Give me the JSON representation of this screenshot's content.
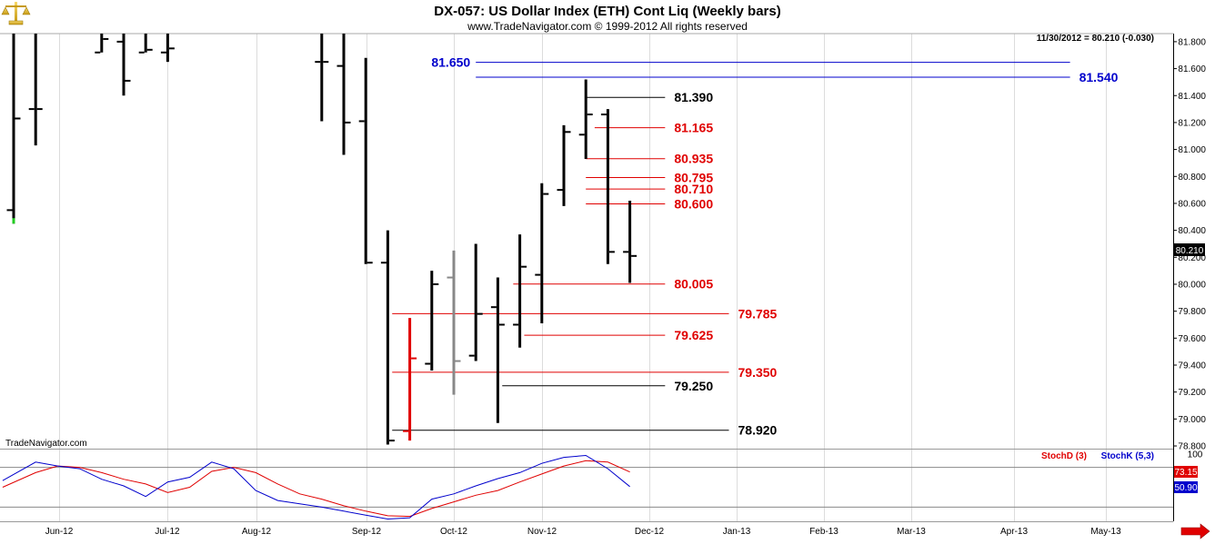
{
  "header": {
    "title": "DX-057:  US Dollar Index (ETH) Cont Liq  (Weekly bars)",
    "subtitle": "www.TradeNavigator.com © 1999-2012 All rights reserved",
    "last_quote": "11/30/2012 = 80.210 (-0.030)",
    "watermark": "TradeNavigator.com",
    "logo_icon": "scales-logo-icon",
    "scroll_icon": "arrow-right-icon"
  },
  "chart_data": [
    {
      "type": "ohlc",
      "title": "DX-057:  US Dollar Index (ETH) Cont Liq  (Weekly bars)",
      "ylim": [
        78.78,
        81.86
      ],
      "y_ticks": [
        78.8,
        79.0,
        79.2,
        79.4,
        79.6,
        79.8,
        80.0,
        80.2,
        80.4,
        80.6,
        80.8,
        81.0,
        81.2,
        81.4,
        81.6,
        81.8
      ],
      "y_tick_labels": [
        "78.800",
        "79.000",
        "79.200",
        "79.400",
        "79.600",
        "79.800",
        "80.000",
        "80.200",
        "80.400",
        "80.600",
        "80.800",
        "81.000",
        "81.200",
        "81.400",
        "81.600",
        "81.800"
      ],
      "months": [
        "Jun-12",
        "Jul-12",
        "Aug-12",
        "Sep-12",
        "Oct-12",
        "Nov-12",
        "Dec-12",
        "Jan-13",
        "Feb-13",
        "Mar-13",
        "Apr-13",
        "May-13"
      ],
      "last_price": 80.21,
      "last_price_label": "80.210",
      "bars": [
        {
          "week": 0,
          "open": 80.55,
          "high": 81.86,
          "low": 80.45,
          "close": 81.23,
          "color": "#000000"
        },
        {
          "week": 1,
          "open": 81.3,
          "high": 81.86,
          "low": 81.03,
          "close": 81.3,
          "color": "#000000"
        },
        {
          "week": 4,
          "open": 81.72,
          "high": 81.86,
          "low": 81.72,
          "close": 81.82,
          "color": "#000000"
        },
        {
          "week": 5,
          "open": 81.8,
          "high": 81.86,
          "low": 81.4,
          "close": 81.51,
          "color": "#000000"
        },
        {
          "week": 6,
          "open": 81.72,
          "high": 81.86,
          "low": 81.72,
          "close": 81.74,
          "color": "#000000"
        },
        {
          "week": 7,
          "open": 81.72,
          "high": 81.86,
          "low": 81.65,
          "close": 81.75,
          "color": "#000000"
        },
        {
          "week": 14,
          "open": 81.65,
          "high": 81.86,
          "low": 81.21,
          "close": 81.65,
          "color": "#000000"
        },
        {
          "week": 15,
          "open": 81.62,
          "high": 81.86,
          "low": 80.96,
          "close": 81.2,
          "color": "#000000"
        },
        {
          "week": 16,
          "open": 81.21,
          "high": 81.68,
          "low": 80.15,
          "close": 80.16,
          "color": "#000000"
        },
        {
          "week": 17,
          "open": 80.16,
          "high": 80.4,
          "low": 78.81,
          "close": 78.84,
          "color": "#000000"
        },
        {
          "week": 18,
          "open": 78.91,
          "high": 79.75,
          "low": 78.84,
          "close": 79.45,
          "color": "#e00000"
        },
        {
          "week": 19,
          "open": 79.41,
          "high": 80.1,
          "low": 79.36,
          "close": 80.0,
          "color": "#000000"
        },
        {
          "week": 20,
          "open": 80.05,
          "high": 80.25,
          "low": 79.18,
          "close": 79.43,
          "color": "#888888"
        },
        {
          "week": 21,
          "open": 79.47,
          "high": 80.3,
          "low": 79.43,
          "close": 79.78,
          "color": "#000000"
        },
        {
          "week": 22,
          "open": 79.83,
          "high": 80.05,
          "low": 78.97,
          "close": 79.7,
          "color": "#000000"
        },
        {
          "week": 23,
          "open": 79.7,
          "high": 80.37,
          "low": 79.53,
          "close": 80.13,
          "color": "#000000"
        },
        {
          "week": 24,
          "open": 80.07,
          "high": 80.75,
          "low": 79.71,
          "close": 80.67,
          "color": "#000000"
        },
        {
          "week": 25,
          "open": 80.7,
          "high": 81.18,
          "low": 80.58,
          "close": 81.13,
          "color": "#000000"
        },
        {
          "week": 26,
          "open": 81.11,
          "high": 81.52,
          "low": 80.93,
          "close": 81.26,
          "color": "#000000"
        },
        {
          "week": 27,
          "open": 81.26,
          "high": 81.3,
          "low": 80.15,
          "close": 80.24,
          "color": "#000000"
        },
        {
          "week": 28,
          "open": 80.24,
          "high": 80.62,
          "low": 80.01,
          "close": 80.21,
          "color": "#000000"
        }
      ],
      "levels": [
        {
          "label": "81.650",
          "value": 81.65,
          "color": "#0000cc",
          "from_week": 21.0,
          "to_week": 48.0,
          "label_side": "left"
        },
        {
          "label": "81.540",
          "value": 81.54,
          "color": "#0000cc",
          "from_week": 21.0,
          "to_week": 48.0,
          "label_side": "right"
        },
        {
          "label": "81.390",
          "value": 81.39,
          "color": "#000000",
          "from_week": 26.0,
          "to_week": 29.6,
          "label_side": "right"
        },
        {
          "label": "81.165",
          "value": 81.165,
          "color": "#e00000",
          "from_week": 26.4,
          "to_week": 29.6,
          "label_side": "right"
        },
        {
          "label": "80.935",
          "value": 80.935,
          "color": "#e00000",
          "from_week": 26.0,
          "to_week": 29.6,
          "label_side": "right"
        },
        {
          "label": "80.795",
          "value": 80.795,
          "color": "#e00000",
          "from_week": 26.0,
          "to_week": 29.6,
          "label_side": "right"
        },
        {
          "label": "80.710",
          "value": 80.71,
          "color": "#e00000",
          "from_week": 26.0,
          "to_week": 29.6,
          "label_side": "right"
        },
        {
          "label": "80.600",
          "value": 80.6,
          "color": "#e00000",
          "from_week": 26.0,
          "to_week": 29.6,
          "label_side": "right"
        },
        {
          "label": "80.005",
          "value": 80.005,
          "color": "#e00000",
          "from_week": 22.7,
          "to_week": 29.6,
          "label_side": "right"
        },
        {
          "label": "79.785",
          "value": 79.785,
          "color": "#e00000",
          "from_week": 17.2,
          "to_week": 32.5,
          "label_side": "right"
        },
        {
          "label": "79.625",
          "value": 79.625,
          "color": "#e00000",
          "from_week": 23.2,
          "to_week": 29.6,
          "label_side": "right"
        },
        {
          "label": "79.350",
          "value": 79.35,
          "color": "#e00000",
          "from_week": 17.2,
          "to_week": 32.5,
          "label_side": "right"
        },
        {
          "label": "79.250",
          "value": 79.25,
          "color": "#000000",
          "from_week": 22.2,
          "to_week": 29.6,
          "label_side": "right"
        },
        {
          "label": "78.920",
          "value": 78.92,
          "color": "#000000",
          "from_week": 17.2,
          "to_week": 32.5,
          "label_side": "right"
        }
      ]
    },
    {
      "type": "line",
      "ylim": [
        0,
        100
      ],
      "y_ticks": [
        100
      ],
      "y_tick_labels": [
        "100"
      ],
      "reference_lines": [
        80,
        20
      ],
      "series": [
        {
          "name": "StochD (3)",
          "color": "#e00000",
          "value_label": "73.15",
          "x": [
            -0.5,
            1,
            2,
            3,
            4,
            5,
            6,
            7,
            8,
            9,
            10,
            11,
            12,
            13,
            14,
            15,
            16,
            17,
            18,
            19,
            20,
            21,
            22,
            23,
            24,
            25,
            26,
            27,
            28
          ],
          "values": [
            50,
            72,
            82,
            80,
            72,
            62,
            55,
            42,
            50,
            74,
            80,
            72,
            55,
            40,
            32,
            22,
            14,
            7,
            6,
            18,
            28,
            38,
            45,
            58,
            70,
            82,
            90,
            88,
            73
          ]
        },
        {
          "name": "StochK (5,3)",
          "color": "#0000cc",
          "value_label": "50.90",
          "x": [
            -0.5,
            1,
            2,
            3,
            4,
            5,
            6,
            7,
            8,
            9,
            10,
            11,
            12,
            13,
            14,
            15,
            16,
            17,
            18,
            19,
            20,
            21,
            22,
            23,
            24,
            25,
            26,
            27,
            28
          ],
          "values": [
            60,
            88,
            82,
            78,
            62,
            52,
            36,
            58,
            65,
            88,
            78,
            45,
            30,
            25,
            20,
            14,
            8,
            2,
            4,
            32,
            40,
            52,
            63,
            72,
            86,
            95,
            98,
            78,
            51
          ]
        }
      ]
    }
  ]
}
